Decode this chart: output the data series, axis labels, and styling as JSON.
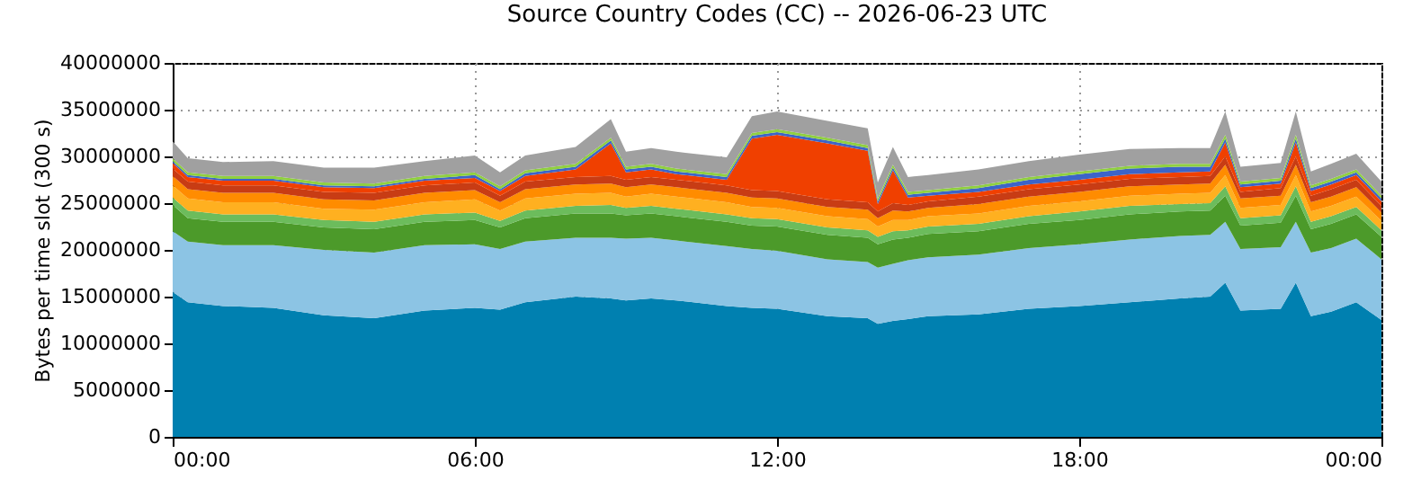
{
  "chart_data": {
    "type": "area",
    "stacked": true,
    "title": "Source Country Codes (CC) -- 2026-06-23 UTC",
    "ylabel": "Bytes per time slot (300 s)",
    "x": [
      0,
      0.3,
      1,
      2,
      3,
      4,
      5,
      6,
      6.5,
      7,
      8,
      8.7,
      9,
      9.5,
      10,
      11,
      11.5,
      12,
      13,
      13.8,
      14,
      14.3,
      14.6,
      15,
      16,
      17,
      18,
      19,
      20,
      20.6,
      20.9,
      21.2,
      22,
      22.3,
      22.6,
      23,
      23.5,
      24
    ],
    "xlim": [
      0,
      24
    ],
    "xticks": [
      {
        "value": 0,
        "label": "00:00"
      },
      {
        "value": 6,
        "label": "06:00"
      },
      {
        "value": 12,
        "label": "12:00"
      },
      {
        "value": 18,
        "label": "18:00"
      },
      {
        "value": 24,
        "label": "00:00"
      }
    ],
    "ylim": [
      0,
      40000000
    ],
    "yticks": [
      0,
      5000000,
      10000000,
      15000000,
      20000000,
      25000000,
      30000000,
      35000000,
      40000000
    ],
    "grid": true,
    "legend": false,
    "series": [
      {
        "color": "#0080b0",
        "values": [
          15500000.0,
          14400000.0,
          14000000.0,
          13800000.0,
          13000000.0,
          12700000.0,
          13500000.0,
          13800000.0,
          13600000.0,
          14400000.0,
          15000000.0,
          14800000.0,
          14600000.0,
          14800000.0,
          14600000.0,
          14000000.0,
          13800000.0,
          13700000.0,
          12900000.0,
          12700000.0,
          12100000.0,
          12400000.0,
          12600000.0,
          12900000.0,
          13100000.0,
          13700000.0,
          14000000.0,
          14400000.0,
          14800000.0,
          15000000.0,
          16500000.0,
          13500000.0,
          13700000.0,
          16500000.0,
          12900000.0,
          13400000.0,
          14400000.0,
          12500000.0
        ]
      },
      {
        "color": "#8cc4e4",
        "values": [
          6500000.0,
          6500000.0,
          6500000.0,
          6700000.0,
          7000000.0,
          7000000.0,
          7000000.0,
          6800000.0,
          6500000.0,
          6500000.0,
          6300000.0,
          6500000.0,
          6600000.0,
          6500000.0,
          6400000.0,
          6400000.0,
          6300000.0,
          6200000.0,
          6100000.0,
          6000000.0,
          6000000.0,
          6100000.0,
          6300000.0,
          6300000.0,
          6400000.0,
          6500000.0,
          6600000.0,
          6700000.0,
          6700000.0,
          6600000.0,
          6500000.0,
          6600000.0,
          6600000.0,
          6500000.0,
          6800000.0,
          6800000.0,
          6800000.0,
          6500000.0
        ]
      },
      {
        "color": "#4c9a2a",
        "values": [
          2800000.0,
          2500000.0,
          2500000.0,
          2500000.0,
          2400000.0,
          2500000.0,
          2500000.0,
          2600000.0,
          2300000.0,
          2500000.0,
          2600000.0,
          2600000.0,
          2500000.0,
          2600000.0,
          2600000.0,
          2600000.0,
          2500000.0,
          2600000.0,
          2600000.0,
          2600000.0,
          2500000.0,
          2600000.0,
          2400000.0,
          2500000.0,
          2500000.0,
          2600000.0,
          2600000.0,
          2700000.0,
          2600000.0,
          2600000.0,
          2800000.0,
          2500000.0,
          2600000.0,
          2800000.0,
          2500000.0,
          2600000.0,
          2600000.0,
          2400000.0
        ]
      },
      {
        "color": "#6cbc5c",
        "values": [
          800000.0,
          800000.0,
          800000.0,
          800000.0,
          800000.0,
          800000.0,
          800000.0,
          800000.0,
          700000.0,
          800000.0,
          800000.0,
          900000.0,
          800000.0,
          800000.0,
          800000.0,
          800000.0,
          800000.0,
          800000.0,
          800000.0,
          800000.0,
          800000.0,
          900000.0,
          800000.0,
          800000.0,
          800000.0,
          800000.0,
          900000.0,
          900000.0,
          800000.0,
          800000.0,
          1000000.0,
          800000.0,
          800000.0,
          1000000.0,
          800000.0,
          800000.0,
          800000.0,
          700000.0
        ]
      },
      {
        "color": "#ffb020",
        "values": [
          1300000.0,
          1300000.0,
          1300000.0,
          1300000.0,
          1200000.0,
          1300000.0,
          1300000.0,
          1400000.0,
          1100000.0,
          1300000.0,
          1300000.0,
          1300000.0,
          1200000.0,
          1300000.0,
          1300000.0,
          1300000.0,
          1200000.0,
          1200000.0,
          1200000.0,
          1200000.0,
          1100000.0,
          1200000.0,
          1100000.0,
          1100000.0,
          1100000.0,
          1100000.0,
          1100000.0,
          1100000.0,
          1100000.0,
          1100000.0,
          1200000.0,
          1100000.0,
          1100000.0,
          1200000.0,
          1100000.0,
          1100000.0,
          1100000.0,
          1000000.0
        ]
      },
      {
        "color": "#ff8c00",
        "values": [
          1000000.0,
          1000000.0,
          1000000.0,
          1000000.0,
          1000000.0,
          1000000.0,
          1000000.0,
          1000000.0,
          900000.0,
          1000000.0,
          1000000.0,
          1000000.0,
          1000000.0,
          1000000.0,
          1000000.0,
          1000000.0,
          1000000.0,
          1000000.0,
          1000000.0,
          1000000.0,
          900000.0,
          1000000.0,
          900000.0,
          900000.0,
          1000000.0,
          1000000.0,
          1000000.0,
          1000000.0,
          1000000.0,
          1000000.0,
          1100000.0,
          1000000.0,
          1000000.0,
          1100000.0,
          1000000.0,
          1000000.0,
          1000000.0,
          900000.0
        ]
      },
      {
        "color": "#c83c14",
        "values": [
          800000.0,
          800000.0,
          800000.0,
          800000.0,
          800000.0,
          800000.0,
          800000.0,
          800000.0,
          700000.0,
          800000.0,
          800000.0,
          800000.0,
          800000.0,
          800000.0,
          800000.0,
          800000.0,
          800000.0,
          800000.0,
          800000.0,
          800000.0,
          700000.0,
          800000.0,
          700000.0,
          700000.0,
          800000.0,
          800000.0,
          800000.0,
          800000.0,
          800000.0,
          800000.0,
          900000.0,
          700000.0,
          800000.0,
          900000.0,
          700000.0,
          800000.0,
          800000.0,
          700000.0
        ]
      },
      {
        "color": "#f04000",
        "values": [
          600000.0,
          500000.0,
          500000.0,
          500000.0,
          500000.0,
          500000.0,
          500000.0,
          500000.0,
          500000.0,
          600000.0,
          800000.0,
          3500000.0,
          800000.0,
          800000.0,
          600000.0,
          600000.0,
          5500000.0,
          6000000.0,
          6000000.0,
          5500000.0,
          800000.0,
          3500000.0,
          800000.0,
          600000.0,
          500000.0,
          500000.0,
          500000.0,
          500000.0,
          500000.0,
          500000.0,
          1500000.0,
          500000.0,
          500000.0,
          1500000.0,
          500000.0,
          500000.0,
          500000.0,
          500000.0
        ]
      },
      {
        "color": "#3c64c8",
        "values": [
          200000.0,
          200000.0,
          200000.0,
          200000.0,
          200000.0,
          200000.0,
          200000.0,
          300000.0,
          200000.0,
          300000.0,
          300000.0,
          300000.0,
          300000.0,
          300000.0,
          300000.0,
          300000.0,
          300000.0,
          300000.0,
          300000.0,
          300000.0,
          300000.0,
          300000.0,
          300000.0,
          300000.0,
          400000.0,
          500000.0,
          600000.0,
          600000.0,
          600000.0,
          500000.0,
          400000.0,
          300000.0,
          300000.0,
          400000.0,
          300000.0,
          300000.0,
          300000.0,
          300000.0
        ]
      },
      {
        "color": "#90d040",
        "values": [
          300000.0,
          300000.0,
          300000.0,
          300000.0,
          300000.0,
          300000.0,
          300000.0,
          300000.0,
          300000.0,
          300000.0,
          300000.0,
          300000.0,
          300000.0,
          300000.0,
          300000.0,
          300000.0,
          300000.0,
          300000.0,
          300000.0,
          300000.0,
          300000.0,
          300000.0,
          300000.0,
          300000.0,
          300000.0,
          300000.0,
          300000.0,
          300000.0,
          300000.0,
          300000.0,
          400000.0,
          300000.0,
          300000.0,
          400000.0,
          300000.0,
          300000.0,
          300000.0,
          300000.0
        ]
      },
      {
        "color": "#a0a0a0",
        "values": [
          1800000.0,
          1500000.0,
          1500000.0,
          1600000.0,
          1600000.0,
          1700000.0,
          1600000.0,
          1800000.0,
          1500000.0,
          1600000.0,
          1800000.0,
          2000000.0,
          1600000.0,
          1700000.0,
          1800000.0,
          1800000.0,
          1800000.0,
          1900000.0,
          1800000.0,
          1800000.0,
          1700000.0,
          1900000.0,
          1600000.0,
          1600000.0,
          1700000.0,
          1700000.0,
          1800000.0,
          1800000.0,
          1700000.0,
          1700000.0,
          2500000.0,
          1600000.0,
          1600000.0,
          2500000.0,
          1500000.0,
          1600000.0,
          1700000.0,
          1500000.0
        ]
      }
    ]
  }
}
